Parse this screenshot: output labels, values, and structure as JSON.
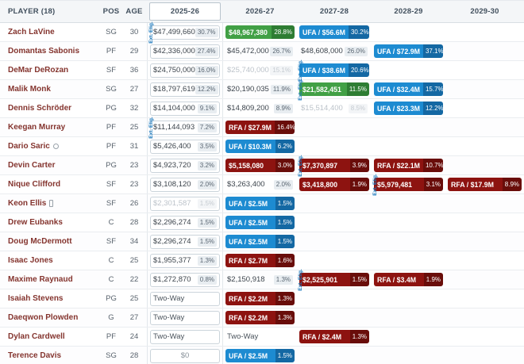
{
  "labels": {
    "ext_eligible": "Ext. Elig.",
    "two_way": "Two-Way"
  },
  "colors": {
    "player_name": "#84342e",
    "player_option_green": "#41a045",
    "player_option_green_dark": "#2e7d33",
    "ufa_blue": "#1d8bd1",
    "ufa_blue_dark": "#1468a3",
    "rfa_red": "#8d1310",
    "rfa_red_dark": "#690d0a",
    "ext_eligible_blue": "#1878bd"
  },
  "table": {
    "columns": [
      {
        "label": "PLAYER (18)",
        "key": "player"
      },
      {
        "label": "POS",
        "key": "pos"
      },
      {
        "label": "AGE",
        "key": "age"
      },
      {
        "label": "2025-26",
        "key": "2025-26",
        "active": true
      },
      {
        "label": "2026-27",
        "key": "2026-27"
      },
      {
        "label": "2027-28",
        "key": "2027-28"
      },
      {
        "label": "2028-29",
        "key": "2028-29"
      },
      {
        "label": "2029-30",
        "key": "2029-30"
      }
    ],
    "rows": [
      {
        "player": "Zach LaVine",
        "pos": "SG",
        "age": "30",
        "icon": null,
        "cells": [
          {
            "t": "plain",
            "v": "$47,499,660",
            "p": "30.7%",
            "ext": true
          },
          {
            "t": "green",
            "v": "$48,967,380",
            "p": "28.8%"
          },
          {
            "t": "blue",
            "v": "UFA / $56.6M",
            "p": "30.2%"
          },
          null,
          null
        ]
      },
      {
        "player": "Domantas Sabonis",
        "pos": "PF",
        "age": "29",
        "icon": null,
        "cells": [
          {
            "t": "plain",
            "v": "$42,336,000",
            "p": "27.4%"
          },
          {
            "t": "plain",
            "v": "$45,472,000",
            "p": "26.7%"
          },
          {
            "t": "plain",
            "v": "$48,608,000",
            "p": "26.0%"
          },
          {
            "t": "blue",
            "v": "UFA / $72.9M",
            "p": "37.1%"
          },
          null
        ]
      },
      {
        "player": "DeMar DeRozan",
        "pos": "SF",
        "age": "36",
        "icon": null,
        "cells": [
          {
            "t": "plain",
            "v": "$24,750,000",
            "p": "16.0%"
          },
          {
            "t": "muted",
            "v": "$25,740,000",
            "p": "15.1%"
          },
          {
            "t": "blue",
            "v": "UFA / $38.6M",
            "p": "20.6%",
            "ext": true
          },
          null,
          null
        ]
      },
      {
        "player": "Malik Monk",
        "pos": "SG",
        "age": "27",
        "icon": null,
        "cells": [
          {
            "t": "plain",
            "v": "$18,797,619",
            "p": "12.2%"
          },
          {
            "t": "plain",
            "v": "$20,190,035",
            "p": "11.9%"
          },
          {
            "t": "green",
            "v": "$21,582,451",
            "p": "11.5%",
            "ext": true
          },
          {
            "t": "blue",
            "v": "UFA / $32.4M",
            "p": "15.7%"
          },
          null
        ]
      },
      {
        "player": "Dennis Schröder",
        "pos": "PG",
        "age": "32",
        "icon": null,
        "cells": [
          {
            "t": "plain",
            "v": "$14,104,000",
            "p": "9.1%"
          },
          {
            "t": "plain",
            "v": "$14,809,200",
            "p": "8.9%"
          },
          {
            "t": "muted",
            "v": "$15,514,400",
            "p": "8.5%"
          },
          {
            "t": "blue",
            "v": "UFA / $23.3M",
            "p": "12.2%"
          },
          null
        ]
      },
      {
        "player": "Keegan Murray",
        "pos": "PF",
        "age": "25",
        "icon": null,
        "cells": [
          {
            "t": "plain",
            "v": "$11,144,093",
            "p": "7.2%",
            "ext": true
          },
          {
            "t": "red",
            "v": "RFA / $27.9M",
            "p": "16.4%"
          },
          null,
          null,
          null
        ]
      },
      {
        "player": "Dario Saric",
        "pos": "PF",
        "age": "31",
        "icon": "note",
        "cells": [
          {
            "t": "plain",
            "v": "$5,426,400",
            "p": "3.5%"
          },
          {
            "t": "blue",
            "v": "UFA / $10.3M",
            "p": "6.2%"
          },
          null,
          null,
          null
        ]
      },
      {
        "player": "Devin Carter",
        "pos": "PG",
        "age": "23",
        "icon": null,
        "cells": [
          {
            "t": "plain",
            "v": "$4,923,720",
            "p": "3.2%"
          },
          {
            "t": "red",
            "v": "$5,158,080",
            "p": "3.0%"
          },
          {
            "t": "red",
            "v": "$7,370,897",
            "p": "3.9%",
            "ext": true
          },
          {
            "t": "red",
            "v": "RFA / $22.1M",
            "p": "10.7%"
          },
          null
        ]
      },
      {
        "player": "Nique Clifford",
        "pos": "SF",
        "age": "23",
        "icon": null,
        "cells": [
          {
            "t": "plain",
            "v": "$3,108,120",
            "p": "2.0%"
          },
          {
            "t": "plain",
            "v": "$3,263,400",
            "p": "2.0%"
          },
          {
            "t": "red",
            "v": "$3,418,800",
            "p": "1.9%"
          },
          {
            "t": "red",
            "v": "$5,979,481",
            "p": "3.1%",
            "ext": true
          },
          {
            "t": "red",
            "v": "RFA / $17.9M",
            "p": "8.9%"
          }
        ]
      },
      {
        "player": "Keon Ellis",
        "pos": "SF",
        "age": "26",
        "icon": "phone",
        "cells": [
          {
            "t": "muted",
            "v": "$2,301,587",
            "p": "1.5%"
          },
          {
            "t": "blue",
            "v": "UFA / $2.5M",
            "p": "1.5%"
          },
          null,
          null,
          null
        ]
      },
      {
        "player": "Drew Eubanks",
        "pos": "C",
        "age": "28",
        "icon": null,
        "cells": [
          {
            "t": "plain",
            "v": "$2,296,274",
            "p": "1.5%"
          },
          {
            "t": "blue",
            "v": "UFA / $2.5M",
            "p": "1.5%"
          },
          null,
          null,
          null
        ]
      },
      {
        "player": "Doug McDermott",
        "pos": "SF",
        "age": "34",
        "icon": null,
        "cells": [
          {
            "t": "plain",
            "v": "$2,296,274",
            "p": "1.5%"
          },
          {
            "t": "blue",
            "v": "UFA / $2.5M",
            "p": "1.5%"
          },
          null,
          null,
          null
        ]
      },
      {
        "player": "Isaac Jones",
        "pos": "C",
        "age": "25",
        "icon": null,
        "cells": [
          {
            "t": "plain",
            "v": "$1,955,377",
            "p": "1.3%"
          },
          {
            "t": "red",
            "v": "RFA / $2.7M",
            "p": "1.6%"
          },
          null,
          null,
          null
        ]
      },
      {
        "player": "Maxime Raynaud",
        "pos": "C",
        "age": "22",
        "icon": null,
        "cells": [
          {
            "t": "plain",
            "v": "$1,272,870",
            "p": "0.8%"
          },
          {
            "t": "plain",
            "v": "$2,150,918",
            "p": "1.3%"
          },
          {
            "t": "red",
            "v": "$2,525,901",
            "p": "1.5%",
            "ext": true
          },
          {
            "t": "red",
            "v": "RFA / $3.4M",
            "p": "1.9%"
          },
          null
        ]
      },
      {
        "player": "Isaiah Stevens",
        "pos": "PG",
        "age": "25",
        "icon": null,
        "cells": [
          {
            "t": "twoway",
            "v": "Two-Way"
          },
          {
            "t": "red",
            "v": "RFA / $2.2M",
            "p": "1.3%"
          },
          null,
          null,
          null
        ]
      },
      {
        "player": "Daeqwon Plowden",
        "pos": "G",
        "age": "27",
        "icon": null,
        "cells": [
          {
            "t": "twoway",
            "v": "Two-Way"
          },
          {
            "t": "red",
            "v": "RFA / $2.2M",
            "p": "1.3%"
          },
          null,
          null,
          null
        ]
      },
      {
        "player": "Dylan Cardwell",
        "pos": "PF",
        "age": "24",
        "icon": null,
        "cells": [
          {
            "t": "twoway",
            "v": "Two-Way"
          },
          {
            "t": "twoway",
            "v": "Two-Way"
          },
          {
            "t": "red",
            "v": "RFA / $2.4M",
            "p": "1.3%"
          },
          null,
          null
        ]
      },
      {
        "player": "Terence Davis",
        "pos": "SG",
        "age": "28",
        "icon": null,
        "cells": [
          {
            "t": "zero",
            "v": "$0"
          },
          {
            "t": "blue",
            "v": "UFA / $2.5M",
            "p": "1.5%"
          },
          null,
          null,
          null
        ]
      }
    ]
  }
}
